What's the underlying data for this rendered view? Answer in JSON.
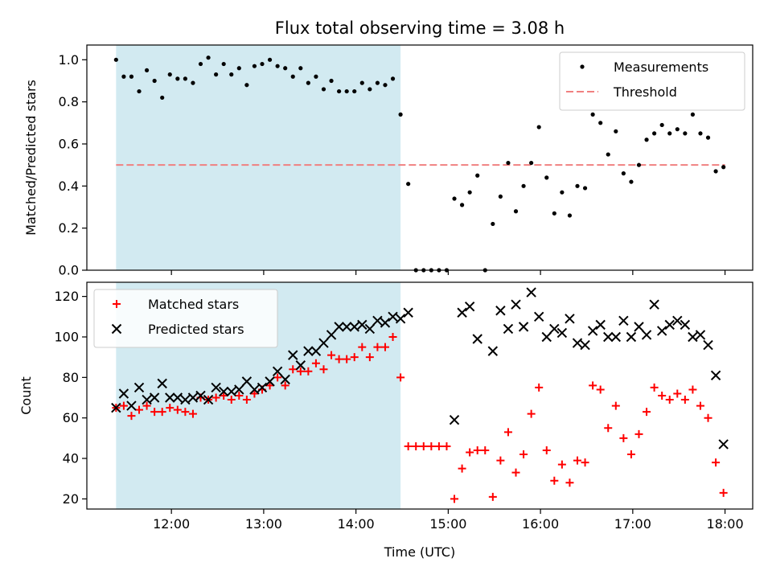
{
  "chart_data": {
    "title": "Flux total observing time = 3.08 h",
    "xlabel": "Time (UTC)",
    "x_ticks": [
      "12:00",
      "13:00",
      "14:00",
      "15:00",
      "16:00",
      "17:00",
      "18:00"
    ],
    "xlim": [
      "11:05",
      "18:18"
    ],
    "highlight_span": {
      "from": "11:24",
      "to": "14:29",
      "color": "#add8e6"
    },
    "panels": [
      {
        "type": "scatter",
        "ylabel": "Matched/Predicted stars",
        "ylim": [
          0,
          1.07
        ],
        "y_ticks": [
          "0.0",
          "0.2",
          "0.4",
          "0.6",
          "0.8",
          "1.0"
        ],
        "legend_position": "top-right",
        "threshold": {
          "name": "Threshold",
          "value": 0.5,
          "from": "11:24",
          "to": "18:00",
          "color": "#f08080"
        },
        "series": [
          {
            "name": "Measurements",
            "color": "#000000",
            "points": [
              [
                "11:24",
                1.0
              ],
              [
                "11:29",
                0.92
              ],
              [
                "11:34",
                0.92
              ],
              [
                "11:39",
                0.85
              ],
              [
                "11:44",
                0.95
              ],
              [
                "11:49",
                0.9
              ],
              [
                "11:54",
                0.82
              ],
              [
                "11:59",
                0.93
              ],
              [
                "12:04",
                0.91
              ],
              [
                "12:09",
                0.91
              ],
              [
                "12:14",
                0.89
              ],
              [
                "12:19",
                0.98
              ],
              [
                "12:24",
                1.01
              ],
              [
                "12:29",
                0.93
              ],
              [
                "12:34",
                0.98
              ],
              [
                "12:39",
                0.93
              ],
              [
                "12:44",
                0.96
              ],
              [
                "12:49",
                0.88
              ],
              [
                "12:54",
                0.97
              ],
              [
                "12:59",
                0.98
              ],
              [
                "13:04",
                1.0
              ],
              [
                "13:09",
                0.97
              ],
              [
                "13:14",
                0.96
              ],
              [
                "13:19",
                0.92
              ],
              [
                "13:24",
                0.96
              ],
              [
                "13:29",
                0.89
              ],
              [
                "13:34",
                0.92
              ],
              [
                "13:39",
                0.86
              ],
              [
                "13:44",
                0.9
              ],
              [
                "13:49",
                0.85
              ],
              [
                "13:54",
                0.85
              ],
              [
                "13:59",
                0.85
              ],
              [
                "14:04",
                0.89
              ],
              [
                "14:09",
                0.86
              ],
              [
                "14:14",
                0.89
              ],
              [
                "14:19",
                0.88
              ],
              [
                "14:24",
                0.91
              ],
              [
                "14:29",
                0.74
              ],
              [
                "14:34",
                0.41
              ],
              [
                "14:39",
                0.0
              ],
              [
                "14:44",
                0.0
              ],
              [
                "14:49",
                0.0
              ],
              [
                "14:54",
                0.0
              ],
              [
                "14:59",
                0.0
              ],
              [
                "15:04",
                0.34
              ],
              [
                "15:09",
                0.31
              ],
              [
                "15:14",
                0.37
              ],
              [
                "15:19",
                0.45
              ],
              [
                "15:24",
                0.0
              ],
              [
                "15:29",
                0.22
              ],
              [
                "15:34",
                0.35
              ],
              [
                "15:39",
                0.51
              ],
              [
                "15:44",
                0.28
              ],
              [
                "15:49",
                0.4
              ],
              [
                "15:54",
                0.51
              ],
              [
                "15:59",
                0.68
              ],
              [
                "16:04",
                0.44
              ],
              [
                "16:09",
                0.27
              ],
              [
                "16:14",
                0.37
              ],
              [
                "16:19",
                0.26
              ],
              [
                "16:24",
                0.4
              ],
              [
                "16:29",
                0.39
              ],
              [
                "16:34",
                0.74
              ],
              [
                "16:39",
                0.7
              ],
              [
                "16:44",
                0.55
              ],
              [
                "16:49",
                0.66
              ],
              [
                "16:54",
                0.46
              ],
              [
                "16:59",
                0.42
              ],
              [
                "17:04",
                0.5
              ],
              [
                "17:09",
                0.62
              ],
              [
                "17:14",
                0.65
              ],
              [
                "17:19",
                0.69
              ],
              [
                "17:24",
                0.65
              ],
              [
                "17:29",
                0.67
              ],
              [
                "17:34",
                0.65
              ],
              [
                "17:39",
                0.74
              ],
              [
                "17:44",
                0.65
              ],
              [
                "17:49",
                0.63
              ],
              [
                "17:54",
                0.47
              ],
              [
                "17:59",
                0.49
              ]
            ]
          }
        ]
      },
      {
        "type": "scatter",
        "ylabel": "Count",
        "ylim": [
          15,
          127
        ],
        "y_ticks": [
          "20",
          "40",
          "60",
          "80",
          "100",
          "120"
        ],
        "legend_position": "top-left",
        "series": [
          {
            "name": "Matched stars",
            "marker": "+",
            "color": "#ff0000",
            "points": [
              [
                "11:24",
                65
              ],
              [
                "11:29",
                66
              ],
              [
                "11:34",
                61
              ],
              [
                "11:39",
                64
              ],
              [
                "11:44",
                66
              ],
              [
                "11:49",
                63
              ],
              [
                "11:54",
                63
              ],
              [
                "11:59",
                65
              ],
              [
                "12:04",
                64
              ],
              [
                "12:09",
                63
              ],
              [
                "12:14",
                62
              ],
              [
                "12:19",
                70
              ],
              [
                "12:24",
                69
              ],
              [
                "12:29",
                70
              ],
              [
                "12:34",
                71
              ],
              [
                "12:39",
                69
              ],
              [
                "12:44",
                71
              ],
              [
                "12:49",
                69
              ],
              [
                "12:54",
                72
              ],
              [
                "12:59",
                74
              ],
              [
                "13:04",
                76
              ],
              [
                "13:09",
                80
              ],
              [
                "13:14",
                76
              ],
              [
                "13:19",
                84
              ],
              [
                "13:24",
                83
              ],
              [
                "13:29",
                83
              ],
              [
                "13:34",
                87
              ],
              [
                "13:39",
                84
              ],
              [
                "13:44",
                91
              ],
              [
                "13:49",
                89
              ],
              [
                "13:54",
                89
              ],
              [
                "13:59",
                90
              ],
              [
                "14:04",
                95
              ],
              [
                "14:09",
                90
              ],
              [
                "14:14",
                95
              ],
              [
                "14:19",
                95
              ],
              [
                "14:24",
                100
              ],
              [
                "14:29",
                80
              ],
              [
                "14:34",
                46
              ],
              [
                "14:39",
                46
              ],
              [
                "14:44",
                46
              ],
              [
                "14:49",
                46
              ],
              [
                "14:54",
                46
              ],
              [
                "14:59",
                46
              ],
              [
                "15:04",
                20
              ],
              [
                "15:09",
                35
              ],
              [
                "15:14",
                43
              ],
              [
                "15:19",
                44
              ],
              [
                "15:24",
                44
              ],
              [
                "15:29",
                21
              ],
              [
                "15:34",
                39
              ],
              [
                "15:39",
                53
              ],
              [
                "15:44",
                33
              ],
              [
                "15:49",
                42
              ],
              [
                "15:54",
                62
              ],
              [
                "15:59",
                75
              ],
              [
                "16:04",
                44
              ],
              [
                "16:09",
                29
              ],
              [
                "16:14",
                37
              ],
              [
                "16:19",
                28
              ],
              [
                "16:24",
                39
              ],
              [
                "16:29",
                38
              ],
              [
                "16:34",
                76
              ],
              [
                "16:39",
                74
              ],
              [
                "16:44",
                55
              ],
              [
                "16:49",
                66
              ],
              [
                "16:54",
                50
              ],
              [
                "16:59",
                42
              ],
              [
                "17:04",
                52
              ],
              [
                "17:09",
                63
              ],
              [
                "17:14",
                75
              ],
              [
                "17:19",
                71
              ],
              [
                "17:24",
                69
              ],
              [
                "17:29",
                72
              ],
              [
                "17:34",
                69
              ],
              [
                "17:39",
                74
              ],
              [
                "17:44",
                66
              ],
              [
                "17:49",
                60
              ],
              [
                "17:54",
                38
              ],
              [
                "17:59",
                23
              ]
            ]
          },
          {
            "name": "Predicted stars",
            "marker": "x",
            "color": "#000000",
            "points": [
              [
                "11:24",
                65
              ],
              [
                "11:29",
                72
              ],
              [
                "11:34",
                66
              ],
              [
                "11:39",
                75
              ],
              [
                "11:44",
                69
              ],
              [
                "11:49",
                70
              ],
              [
                "11:54",
                77
              ],
              [
                "11:59",
                70
              ],
              [
                "12:04",
                70
              ],
              [
                "12:09",
                69
              ],
              [
                "12:14",
                70
              ],
              [
                "12:19",
                71
              ],
              [
                "12:24",
                69
              ],
              [
                "12:29",
                75
              ],
              [
                "12:34",
                73
              ],
              [
                "12:39",
                73
              ],
              [
                "12:44",
                74
              ],
              [
                "12:49",
                78
              ],
              [
                "12:54",
                74
              ],
              [
                "12:59",
                75
              ],
              [
                "13:04",
                78
              ],
              [
                "13:09",
                83
              ],
              [
                "13:14",
                79
              ],
              [
                "13:19",
                91
              ],
              [
                "13:24",
                86
              ],
              [
                "13:29",
                93
              ],
              [
                "13:34",
                93
              ],
              [
                "13:39",
                97
              ],
              [
                "13:44",
                101
              ],
              [
                "13:49",
                105
              ],
              [
                "13:54",
                105
              ],
              [
                "13:59",
                105
              ],
              [
                "14:04",
                106
              ],
              [
                "14:09",
                104
              ],
              [
                "14:14",
                108
              ],
              [
                "14:19",
                107
              ],
              [
                "14:24",
                110
              ],
              [
                "14:29",
                109
              ],
              [
                "14:34",
                112
              ],
              [
                "15:04",
                59
              ],
              [
                "15:09",
                112
              ],
              [
                "15:14",
                115
              ],
              [
                "15:19",
                99
              ],
              [
                "15:29",
                93
              ],
              [
                "15:34",
                113
              ],
              [
                "15:39",
                104
              ],
              [
                "15:44",
                116
              ],
              [
                "15:49",
                105
              ],
              [
                "15:54",
                122
              ],
              [
                "15:59",
                110
              ],
              [
                "16:04",
                100
              ],
              [
                "16:09",
                104
              ],
              [
                "16:14",
                102
              ],
              [
                "16:19",
                109
              ],
              [
                "16:24",
                97
              ],
              [
                "16:29",
                96
              ],
              [
                "16:34",
                103
              ],
              [
                "16:39",
                106
              ],
              [
                "16:44",
                100
              ],
              [
                "16:49",
                100
              ],
              [
                "16:54",
                108
              ],
              [
                "16:59",
                100
              ],
              [
                "17:04",
                105
              ],
              [
                "17:09",
                101
              ],
              [
                "17:14",
                116
              ],
              [
                "17:19",
                103
              ],
              [
                "17:24",
                106
              ],
              [
                "17:29",
                108
              ],
              [
                "17:34",
                106
              ],
              [
                "17:39",
                100
              ],
              [
                "17:44",
                101
              ],
              [
                "17:49",
                96
              ],
              [
                "17:54",
                81
              ],
              [
                "17:59",
                47
              ]
            ]
          }
        ]
      }
    ]
  }
}
